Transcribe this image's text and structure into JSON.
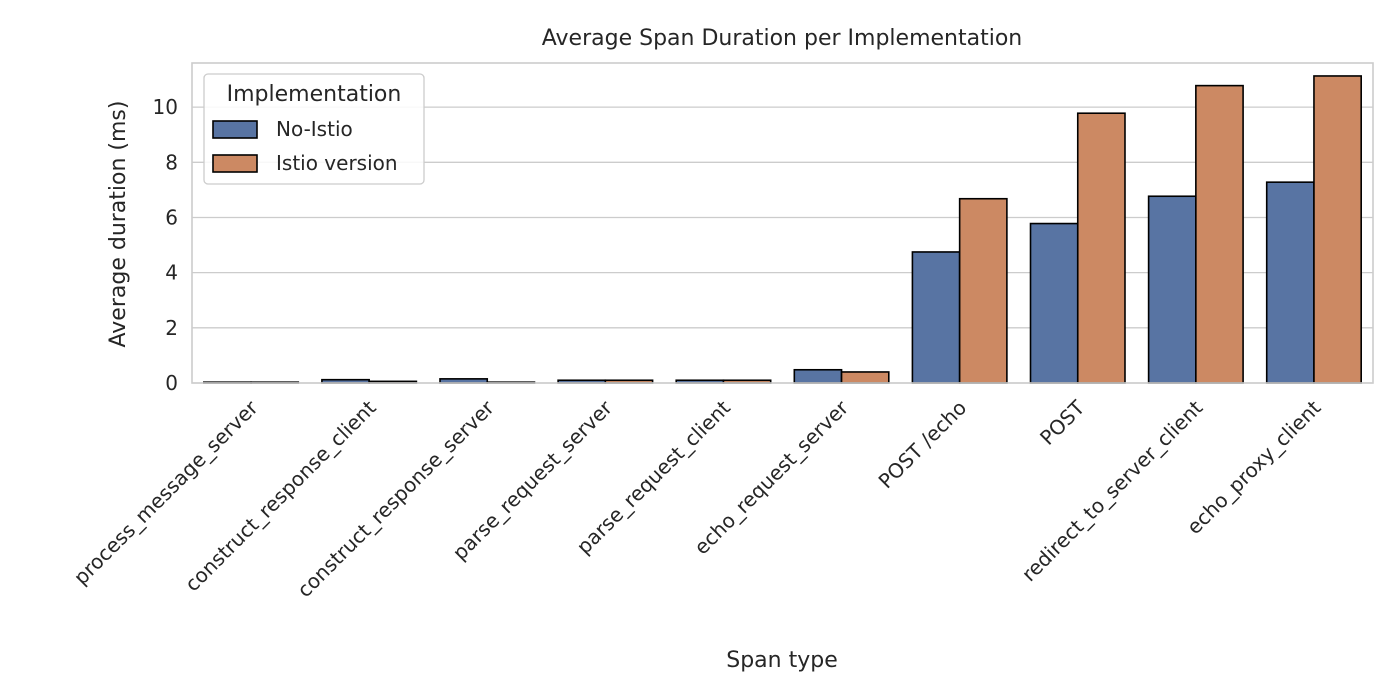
{
  "chart_data": {
    "type": "bar",
    "title": "Average Span Duration per Implementation",
    "xlabel": "Span type",
    "ylabel": "Average duration (ms)",
    "ylim": [
      0,
      11.6
    ],
    "yticks": [
      0,
      2,
      4,
      6,
      8,
      10
    ],
    "grid": true,
    "legend": {
      "title": "Implementation",
      "placement": "top-left"
    },
    "categories": [
      "process_message_server",
      "construct_response_client",
      "construct_response_server",
      "parse_request_server",
      "parse_request_client",
      "echo_request_server",
      "POST /echo",
      "POST",
      "redirect_to_server_client",
      "echo_proxy_client"
    ],
    "series": [
      {
        "name": "No-Istio",
        "color": "#5874a3",
        "values": [
          0.03,
          0.12,
          0.15,
          0.1,
          0.1,
          0.48,
          4.75,
          5.78,
          6.77,
          7.28
        ]
      },
      {
        "name": "Istio version",
        "color": "#cc8963",
        "values": [
          0.03,
          0.06,
          0.03,
          0.1,
          0.1,
          0.4,
          6.68,
          9.78,
          10.78,
          11.13
        ]
      }
    ]
  }
}
